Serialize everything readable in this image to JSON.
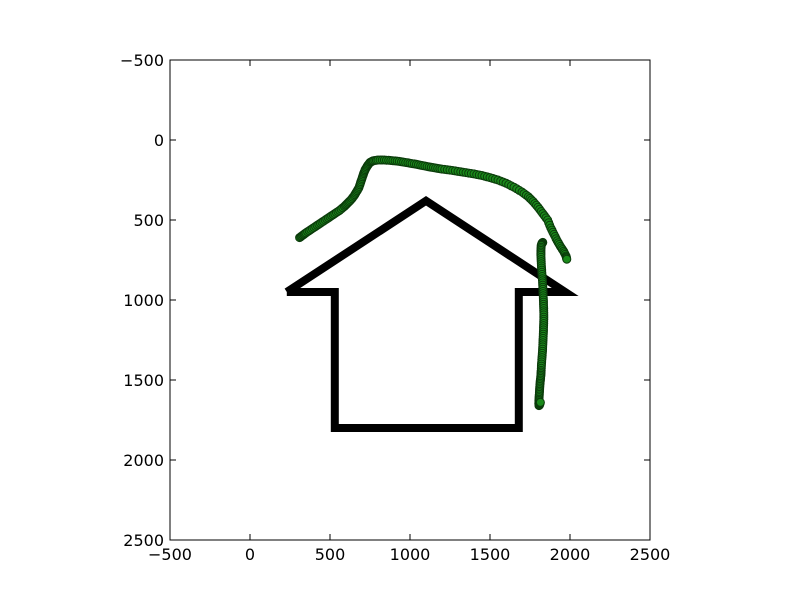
{
  "chart_data": {
    "type": "scatter",
    "title": "",
    "xlabel": "",
    "ylabel": "",
    "xlim": [
      -500,
      2500
    ],
    "ylim": [
      2500,
      -500
    ],
    "y_inverted": true,
    "grid": false,
    "x_ticks": [
      "−500",
      "0",
      "500",
      "1000",
      "1500",
      "2000",
      "2500"
    ],
    "x_tick_values": [
      -500,
      0,
      500,
      1000,
      1500,
      2000,
      2500
    ],
    "y_ticks": [
      "−500",
      "0",
      "500",
      "1000",
      "1500",
      "2000",
      "2500"
    ],
    "y_tick_values": [
      -500,
      0,
      500,
      1000,
      1500,
      2000,
      2500
    ],
    "house_outline": {
      "color": "#000000",
      "points": [
        [
          230,
          950
        ],
        [
          1100,
          380
        ],
        [
          1970,
          950
        ],
        [
          1680,
          950
        ],
        [
          1680,
          1800
        ],
        [
          530,
          1800
        ],
        [
          530,
          950
        ],
        [
          230,
          950
        ]
      ]
    },
    "series": [
      {
        "color": "#1a8a1a",
        "edge_color": "#0b3b0b",
        "x": [
          310,
          330,
          350,
          380,
          410,
          440,
          470,
          500,
          530,
          560,
          590,
          610,
          630,
          650,
          665,
          680,
          690,
          700,
          710,
          720,
          735,
          750,
          770,
          800,
          840,
          880,
          920,
          960,
          1000,
          1040,
          1080,
          1120,
          1160,
          1200,
          1250,
          1300,
          1350,
          1400,
          1450,
          1500,
          1550,
          1600,
          1650,
          1700,
          1740,
          1770,
          1800,
          1830,
          1860,
          1880,
          1900,
          1920,
          1940,
          1960,
          1975,
          1980
        ],
        "y": [
          610,
          595,
          580,
          560,
          540,
          520,
          500,
          480,
          460,
          440,
          415,
          395,
          375,
          350,
          325,
          300,
          270,
          240,
          210,
          185,
          160,
          140,
          130,
          125,
          125,
          128,
          132,
          138,
          145,
          152,
          160,
          168,
          175,
          182,
          188,
          196,
          204,
          212,
          222,
          235,
          250,
          270,
          295,
          325,
          355,
          385,
          420,
          460,
          500,
          550,
          590,
          630,
          665,
          695,
          725,
          745
        ]
      },
      {
        "color": "#1a8a1a",
        "edge_color": "#0b3b0b",
        "x": [
          1830,
          1825,
          1820,
          1818,
          1818,
          1820,
          1822,
          1825,
          1828,
          1830,
          1832,
          1834,
          1835,
          1836,
          1836,
          1835,
          1834,
          1832,
          1830,
          1828,
          1825,
          1822,
          1820,
          1818,
          1815,
          1812,
          1810,
          1808,
          1806,
          1805,
          1806,
          1810,
          1815
        ],
        "y": [
          640,
          645,
          660,
          690,
          720,
          760,
          800,
          840,
          880,
          920,
          960,
          1000,
          1040,
          1080,
          1120,
          1160,
          1200,
          1240,
          1280,
          1320,
          1360,
          1400,
          1440,
          1470,
          1500,
          1530,
          1560,
          1590,
          1620,
          1645,
          1660,
          1655,
          1640
        ]
      }
    ]
  }
}
